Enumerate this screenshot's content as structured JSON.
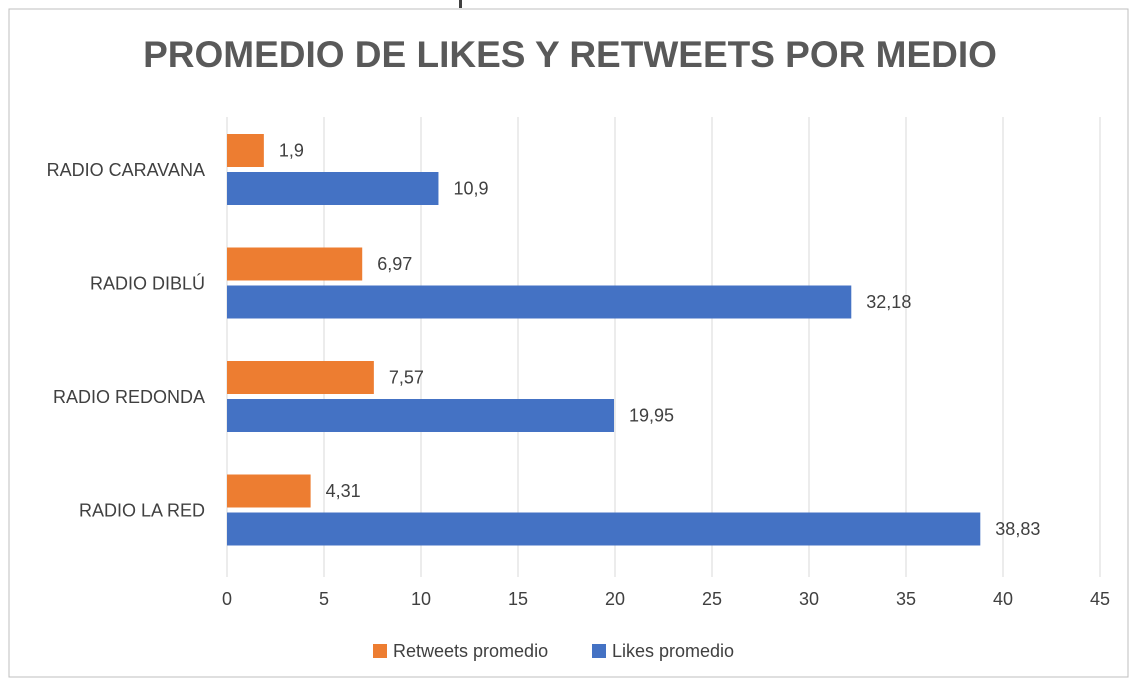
{
  "chart_data": {
    "type": "bar",
    "orientation": "horizontal",
    "title": "PROMEDIO DE LIKES Y RETWEETS POR MEDIO",
    "categories": [
      "RADIO CARAVANA",
      "RADIO DIBLÚ",
      "RADIO REDONDA",
      "RADIO LA RED"
    ],
    "series": [
      {
        "name": "Retweets promedio",
        "values": [
          1.9,
          6.97,
          7.57,
          4.31
        ],
        "labels": [
          "1,9",
          "6,97",
          "7,57",
          "4,31"
        ],
        "color": "#ED7D31"
      },
      {
        "name": "Likes promedio",
        "values": [
          10.9,
          32.18,
          19.95,
          38.83
        ],
        "labels": [
          "10,9",
          "32,18",
          "19,95",
          "38,83"
        ],
        "color": "#4472C4"
      }
    ],
    "xlim": [
      0,
      45
    ],
    "xticks": [
      0,
      5,
      10,
      15,
      20,
      25,
      30,
      35,
      40,
      45
    ],
    "xlabel": "",
    "ylabel": "",
    "grid": true,
    "legend_position": "bottom"
  },
  "colors": {
    "retweets": "#ED7D31",
    "likes": "#4472C4",
    "grid": "#D9D9D9",
    "border": "#BFBFBF"
  }
}
